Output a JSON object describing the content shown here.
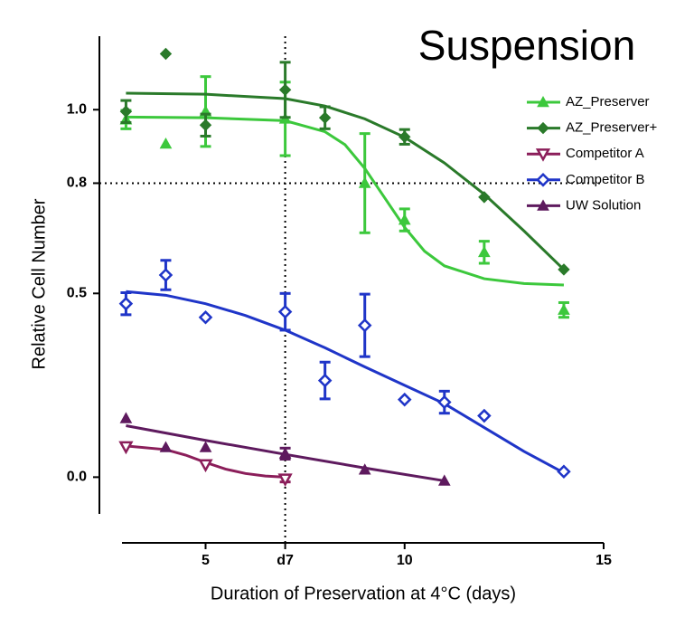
{
  "chart_data": {
    "type": "scatter",
    "title": "Suspension",
    "x_label": "Duration of Preservation at 4°C (days)",
    "y_label": "Relative Cell Number",
    "xlim": [
      2.9,
      15
    ],
    "ylim": [
      -0.1,
      1.2
    ],
    "xticks": [
      5,
      {
        "value": 7,
        "label": "d7"
      },
      10,
      15
    ],
    "yticks": [
      {
        "value": 0,
        "label": "0.0"
      },
      0.5,
      0.8,
      {
        "value": 1,
        "label": "1.0"
      }
    ],
    "reference_lines": {
      "x": 7,
      "y": 0.8
    },
    "series": [
      {
        "name": "AZ_Preserver",
        "color": "#3cc83c",
        "marker": "triangle-up",
        "filled": true,
        "x": [
          3,
          4,
          5,
          7,
          9,
          10,
          12,
          14
        ],
        "values": [
          0.973,
          0.907,
          0.995,
          0.975,
          0.8,
          0.7,
          0.612,
          0.455
        ],
        "errors": [
          0.025,
          null,
          0.095,
          0.1,
          0.135,
          0.03,
          0.03,
          0.02
        ],
        "fit": {
          "x": [
            3,
            5,
            7,
            8,
            8.5,
            9,
            9.5,
            10,
            10.5,
            11,
            12,
            13,
            14
          ],
          "y": [
            0.98,
            0.978,
            0.97,
            0.94,
            0.905,
            0.84,
            0.76,
            0.68,
            0.615,
            0.575,
            0.54,
            0.527,
            0.523
          ]
        }
      },
      {
        "name": "AZ_Preserver+",
        "color": "#2a7a2a",
        "marker": "diamond",
        "filled": true,
        "x": [
          3,
          4,
          5,
          7,
          8,
          10,
          12,
          14
        ],
        "values": [
          0.995,
          1.152,
          0.958,
          1.054,
          0.978,
          0.926,
          0.762,
          0.565
        ],
        "errors": [
          0.03,
          null,
          0.03,
          0.075,
          0.03,
          0.02,
          null,
          null
        ],
        "fit": {
          "x": [
            3,
            5,
            7,
            8,
            9,
            10,
            11,
            12,
            13,
            14
          ],
          "y": [
            1.045,
            1.042,
            1.03,
            1.01,
            0.975,
            0.925,
            0.855,
            0.77,
            0.67,
            0.565
          ]
        }
      },
      {
        "name": "Competitor A",
        "color": "#8b1e5a",
        "marker": "triangle-down",
        "filled": false,
        "x": [
          3,
          5,
          7
        ],
        "values": [
          0.083,
          0.034,
          -0.005
        ],
        "errors": [
          null,
          null,
          0.008
        ],
        "fit": {
          "x": [
            3,
            4,
            4.5,
            5,
            5.5,
            6,
            6.5,
            7
          ],
          "y": [
            0.085,
            0.075,
            0.06,
            0.04,
            0.022,
            0.01,
            0.003,
            0.0
          ]
        }
      },
      {
        "name": "Competitor B",
        "color": "#1f35c8",
        "marker": "diamond",
        "filled": false,
        "x": [
          3,
          4,
          5,
          7,
          8,
          9,
          10,
          11,
          12,
          14
        ],
        "values": [
          0.472,
          0.55,
          0.435,
          0.45,
          0.263,
          0.413,
          0.211,
          0.204,
          0.167,
          0.015
        ],
        "errors": [
          0.03,
          0.04,
          null,
          0.05,
          0.05,
          0.085,
          null,
          0.03,
          null,
          null
        ],
        "fit": {
          "x": [
            3,
            4,
            5,
            6,
            7,
            8,
            9,
            10,
            11,
            12,
            13,
            14
          ],
          "y": [
            0.505,
            0.495,
            0.472,
            0.44,
            0.4,
            0.352,
            0.3,
            0.25,
            0.2,
            0.135,
            0.07,
            0.012
          ]
        }
      },
      {
        "name": "UW Solution",
        "color": "#5e1a5e",
        "marker": "triangle-up",
        "filled": true,
        "x": [
          3,
          4,
          5,
          7,
          9,
          11
        ],
        "values": [
          0.16,
          0.081,
          0.081,
          0.064,
          0.02,
          -0.01
        ],
        "errors": [
          null,
          null,
          null,
          0.015,
          null,
          null
        ],
        "fit": {
          "x": [
            3,
            5,
            7,
            9,
            11
          ],
          "y": [
            0.14,
            0.1,
            0.062,
            0.025,
            -0.01
          ]
        }
      }
    ]
  }
}
